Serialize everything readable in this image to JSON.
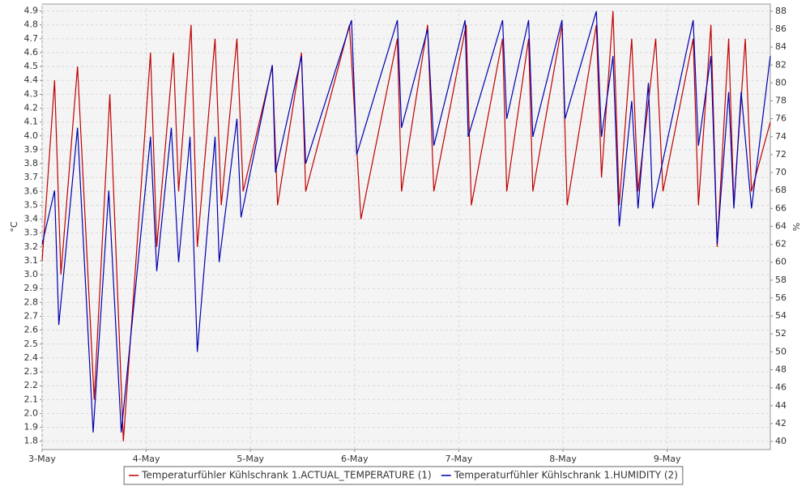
{
  "chart_data": {
    "type": "line",
    "y_label": "°C",
    "y2_label": "%",
    "xlim": [
      0,
      6.99
    ],
    "xticks": [
      {
        "value": 0,
        "label": "3-May"
      },
      {
        "value": 1,
        "label": "4-May"
      },
      {
        "value": 2,
        "label": "5-May"
      },
      {
        "value": 3,
        "label": "6-May"
      },
      {
        "value": 4,
        "label": "7-May"
      },
      {
        "value": 5,
        "label": "8-May"
      },
      {
        "value": 6,
        "label": "9-May"
      }
    ],
    "ylim": [
      1.74,
      4.95
    ],
    "yticks": [
      1.8,
      1.9,
      {
        "value": 2,
        "label": "2.0"
      },
      2.1,
      2.2,
      2.3,
      2.4,
      2.5,
      2.6,
      2.7,
      2.8,
      2.9,
      {
        "value": 3,
        "label": "3.0"
      },
      3.1,
      3.2,
      3.3,
      3.4,
      3.5,
      3.6,
      3.7,
      3.8,
      3.9,
      {
        "value": 4,
        "label": "4.0"
      },
      4.1,
      4.2,
      4.3,
      4.4,
      4.5,
      4.6,
      4.7,
      4.8,
      4.9
    ],
    "y2lim": [
      39.1,
      88.8
    ],
    "y2ticks": [
      40,
      42,
      44,
      46,
      48,
      50,
      52,
      54,
      56,
      58,
      60,
      62,
      64,
      66,
      68,
      70,
      72,
      74,
      76,
      78,
      80,
      82,
      84,
      86,
      88
    ],
    "grid": true,
    "legend": "bottom",
    "series": [
      {
        "name": "Temperaturfühler Kühlschrank 1.ACTUAL_TEMPERATURE (1)",
        "color": "#c00000",
        "axis": "y",
        "x": [
          0,
          0.12,
          0.18,
          0.34,
          0.5,
          0.65,
          0.78,
          1.04,
          1.1,
          1.26,
          1.31,
          1.43,
          1.49,
          1.66,
          1.72,
          1.87,
          1.93,
          2.21,
          2.26,
          2.49,
          2.53,
          2.95,
          3.06,
          3.41,
          3.45,
          3.7,
          3.76,
          4.07,
          4.12,
          4.42,
          4.46,
          4.67,
          4.71,
          4.99,
          5.04,
          5.32,
          5.37,
          5.48,
          5.54,
          5.66,
          5.72,
          5.89,
          5.96,
          6.25,
          6.3,
          6.42,
          6.48,
          6.59,
          6.64,
          6.75,
          6.81,
          6.99
        ],
        "values": [
          3.1,
          4.4,
          3.0,
          4.5,
          2.1,
          4.3,
          1.8,
          4.6,
          3.2,
          4.6,
          3.6,
          4.8,
          3.2,
          4.7,
          3.5,
          4.7,
          3.6,
          4.5,
          3.5,
          4.6,
          3.6,
          4.8,
          3.4,
          4.7,
          3.6,
          4.8,
          3.6,
          4.8,
          3.5,
          4.7,
          3.6,
          4.7,
          3.6,
          4.8,
          3.5,
          4.8,
          3.7,
          4.9,
          3.5,
          4.7,
          3.6,
          4.7,
          3.6,
          4.7,
          3.5,
          4.8,
          3.2,
          4.7,
          3.5,
          4.7,
          3.6,
          4.1
        ]
      },
      {
        "name": "Temperaturfühler Kühlschrank 1.HUMIDITY (2)",
        "color": "#0000b0",
        "axis": "y2",
        "x": [
          0,
          0.12,
          0.16,
          0.34,
          0.49,
          0.64,
          0.76,
          1.04,
          1.1,
          1.24,
          1.31,
          1.42,
          1.49,
          1.66,
          1.7,
          1.87,
          1.91,
          2.21,
          2.24,
          2.49,
          2.53,
          2.97,
          3.02,
          3.41,
          3.45,
          3.7,
          3.76,
          4.06,
          4.09,
          4.42,
          4.46,
          4.67,
          4.71,
          4.99,
          5.02,
          5.32,
          5.37,
          5.48,
          5.54,
          5.66,
          5.72,
          5.82,
          5.86,
          6.25,
          6.3,
          6.42,
          6.48,
          6.59,
          6.64,
          6.71,
          6.81,
          6.99
        ],
        "values": [
          62,
          68,
          53,
          75,
          41,
          68,
          41,
          74,
          59,
          75,
          60,
          74,
          50,
          74,
          60,
          76,
          65,
          82,
          70,
          83,
          71,
          87,
          72,
          87,
          75,
          86,
          73,
          87,
          74,
          87,
          76,
          87,
          74,
          87,
          76,
          88,
          74,
          83,
          64,
          78,
          66,
          80,
          66,
          87,
          73,
          83,
          62,
          79,
          66,
          79,
          66,
          83
        ]
      }
    ]
  }
}
